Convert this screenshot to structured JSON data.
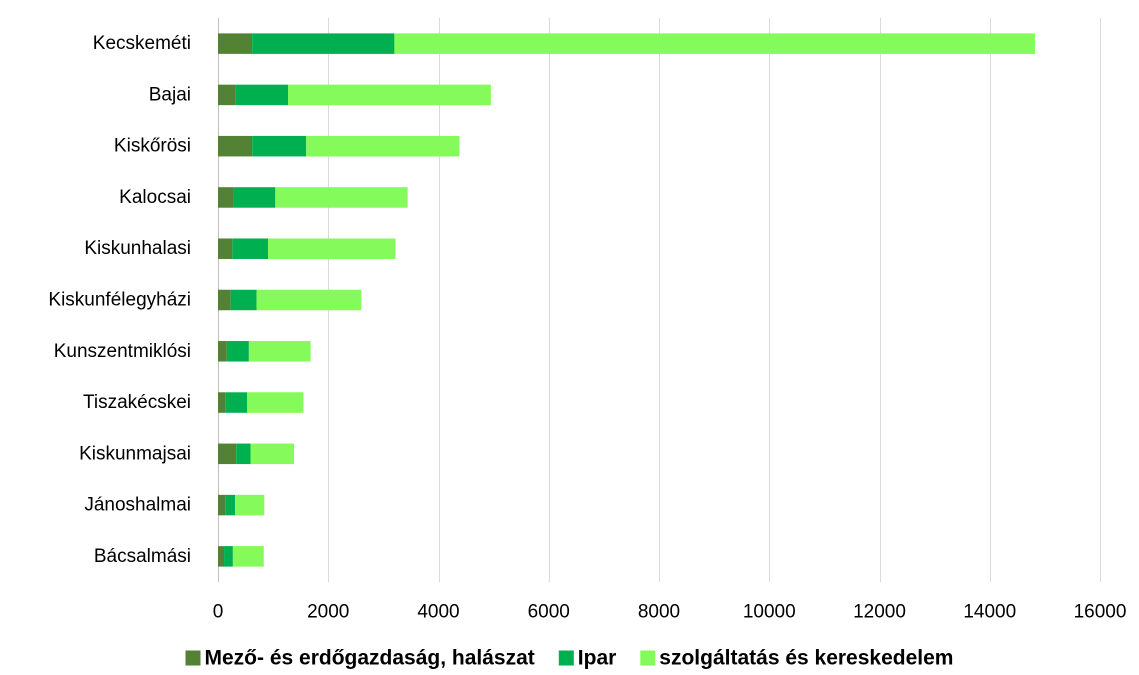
{
  "chart_data": {
    "type": "bar",
    "orientation": "horizontal",
    "stacked": true,
    "categories": [
      "Kecskeméti",
      "Bajai",
      "Kiskőrösi",
      "Kalocsai",
      "Kiskunhalasi",
      "Kiskunfélegyházi",
      "Kunszentmiklósi",
      "Tiszakécskei",
      "Kiskunmajsai",
      "Jánoshalmai",
      "Bácsalmási"
    ],
    "series": [
      {
        "name": "Mező- és erdőgazdaság, halászat",
        "color": "#548235",
        "values": [
          620,
          320,
          620,
          280,
          260,
          230,
          160,
          140,
          330,
          130,
          110
        ]
      },
      {
        "name": "Ipar",
        "color": "#00b050",
        "values": [
          2580,
          950,
          980,
          760,
          650,
          470,
          400,
          390,
          260,
          180,
          160
        ]
      },
      {
        "name": "szolgáltatás és kereskedelem",
        "color": "#84fb5a",
        "values": [
          11620,
          3680,
          2780,
          2400,
          2310,
          1900,
          1120,
          1020,
          790,
          530,
          560
        ]
      }
    ],
    "x_ticks": [
      0,
      2000,
      4000,
      6000,
      8000,
      10000,
      12000,
      14000,
      16000
    ],
    "xlim": [
      0,
      16000
    ],
    "grid": true,
    "legend_position": "bottom"
  }
}
